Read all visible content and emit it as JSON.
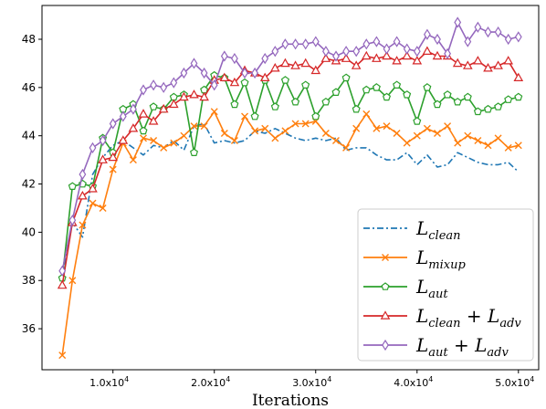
{
  "chart_data": {
    "type": "line",
    "title": "",
    "xlabel": "Iterations",
    "ylabel": "",
    "xlim": [
      3000,
      52000
    ],
    "ylim": [
      34.3,
      49.4
    ],
    "xticks": [
      {
        "value": 10000,
        "label": "1.0x10"
      },
      {
        "value": 20000,
        "label": "2.0x10"
      },
      {
        "value": 30000,
        "label": "3.0x10"
      },
      {
        "value": 40000,
        "label": "4.0x10"
      },
      {
        "value": 50000,
        "label": "5.0x10"
      }
    ],
    "xtick_exponent": "4",
    "yticks": [
      36,
      38,
      40,
      42,
      44,
      46,
      48
    ],
    "legend_position": "lower-right",
    "x": [
      5000,
      6000,
      7000,
      8000,
      9000,
      10000,
      11000,
      12000,
      13000,
      14000,
      15000,
      16000,
      17000,
      18000,
      19000,
      20000,
      21000,
      22000,
      23000,
      24000,
      25000,
      26000,
      27000,
      28000,
      29000,
      30000,
      31000,
      32000,
      33000,
      34000,
      35000,
      36000,
      37000,
      38000,
      39000,
      40000,
      41000,
      42000,
      43000,
      44000,
      45000,
      46000,
      47000,
      48000,
      49000,
      50000
    ],
    "series": [
      {
        "name": "clean",
        "legend_parts": [
          {
            "t": "L",
            "i": true
          },
          {
            "t": "clean",
            "sub": true,
            "i": true
          }
        ],
        "color": "#1f77b4",
        "marker": "none",
        "style": "dashdot",
        "values": [
          38.1,
          40.4,
          39.8,
          42.4,
          43.1,
          43.6,
          43.8,
          43.5,
          43.2,
          43.6,
          43.5,
          43.8,
          43.4,
          44.4,
          44.5,
          43.7,
          43.8,
          43.7,
          43.8,
          44.2,
          44.1,
          44.3,
          44.1,
          43.9,
          43.8,
          43.9,
          43.8,
          43.9,
          43.4,
          43.5,
          43.5,
          43.2,
          43.0,
          43.0,
          43.3,
          42.8,
          43.2,
          42.7,
          42.8,
          43.3,
          43.1,
          42.9,
          42.8,
          42.8,
          42.9,
          42.5
        ]
      },
      {
        "name": "mixup",
        "legend_parts": [
          {
            "t": "L",
            "i": true
          },
          {
            "t": "mixup",
            "sub": true,
            "i": true
          }
        ],
        "color": "#ff7f0e",
        "marker": "x",
        "style": "solid",
        "values": [
          34.9,
          38.0,
          40.3,
          41.2,
          41.0,
          42.6,
          43.7,
          43.0,
          43.9,
          43.8,
          43.5,
          43.7,
          44.0,
          44.4,
          44.4,
          45.0,
          44.1,
          43.8,
          44.8,
          44.2,
          44.3,
          43.9,
          44.2,
          44.5,
          44.5,
          44.6,
          44.1,
          43.8,
          43.5,
          44.3,
          44.9,
          44.3,
          44.4,
          44.1,
          43.7,
          44.0,
          44.3,
          44.1,
          44.4,
          43.7,
          44.0,
          43.8,
          43.6,
          43.9,
          43.5,
          43.6
        ]
      },
      {
        "name": "aut",
        "legend_parts": [
          {
            "t": "L",
            "i": true
          },
          {
            "t": "aut",
            "sub": true,
            "i": true
          }
        ],
        "color": "#2ca02c",
        "marker": "pentagon",
        "style": "solid",
        "values": [
          38.1,
          41.9,
          42.0,
          41.9,
          43.9,
          43.3,
          45.1,
          45.3,
          44.2,
          45.2,
          45.1,
          45.6,
          45.7,
          43.3,
          45.9,
          46.5,
          46.4,
          45.3,
          46.2,
          44.8,
          46.3,
          45.2,
          46.3,
          45.4,
          46.1,
          44.8,
          45.4,
          45.8,
          46.4,
          45.1,
          45.9,
          46.0,
          45.6,
          46.1,
          45.7,
          44.6,
          46.0,
          45.3,
          45.7,
          45.4,
          45.6,
          45.0,
          45.1,
          45.2,
          45.5,
          45.6
        ]
      },
      {
        "name": "clean_adv",
        "legend_parts": [
          {
            "t": "L",
            "i": true
          },
          {
            "t": "clean",
            "sub": true,
            "i": true
          },
          {
            "t": " + "
          },
          {
            "t": "L",
            "i": true
          },
          {
            "t": "adv",
            "sub": true,
            "i": true
          }
        ],
        "color": "#d62728",
        "marker": "triangle",
        "style": "solid",
        "values": [
          37.8,
          40.4,
          41.5,
          41.8,
          43.0,
          43.1,
          43.8,
          44.3,
          44.9,
          44.6,
          45.1,
          45.3,
          45.6,
          45.7,
          45.6,
          46.3,
          46.4,
          46.2,
          46.7,
          46.6,
          46.4,
          46.8,
          47.0,
          46.9,
          47.0,
          46.7,
          47.2,
          47.1,
          47.2,
          46.9,
          47.3,
          47.2,
          47.3,
          47.1,
          47.3,
          47.1,
          47.5,
          47.3,
          47.3,
          47.0,
          46.9,
          47.1,
          46.8,
          46.9,
          47.1,
          46.4
        ]
      },
      {
        "name": "aut_adv",
        "legend_parts": [
          {
            "t": "L",
            "i": true
          },
          {
            "t": "aut",
            "sub": true,
            "i": true
          },
          {
            "t": " + "
          },
          {
            "t": "L",
            "i": true
          },
          {
            "t": "adv",
            "sub": true,
            "i": true
          }
        ],
        "color": "#9467bd",
        "marker": "diamond",
        "style": "solid",
        "values": [
          38.4,
          40.5,
          42.4,
          43.5,
          43.8,
          44.5,
          44.8,
          45.1,
          45.9,
          46.1,
          46.0,
          46.2,
          46.6,
          47.0,
          46.6,
          46.1,
          47.3,
          47.2,
          46.6,
          46.6,
          47.2,
          47.5,
          47.8,
          47.8,
          47.8,
          47.9,
          47.5,
          47.3,
          47.5,
          47.5,
          47.8,
          47.9,
          47.6,
          47.9,
          47.6,
          47.5,
          48.2,
          48.0,
          47.4,
          48.7,
          47.9,
          48.5,
          48.3,
          48.3,
          48.0,
          48.1
        ]
      }
    ]
  }
}
